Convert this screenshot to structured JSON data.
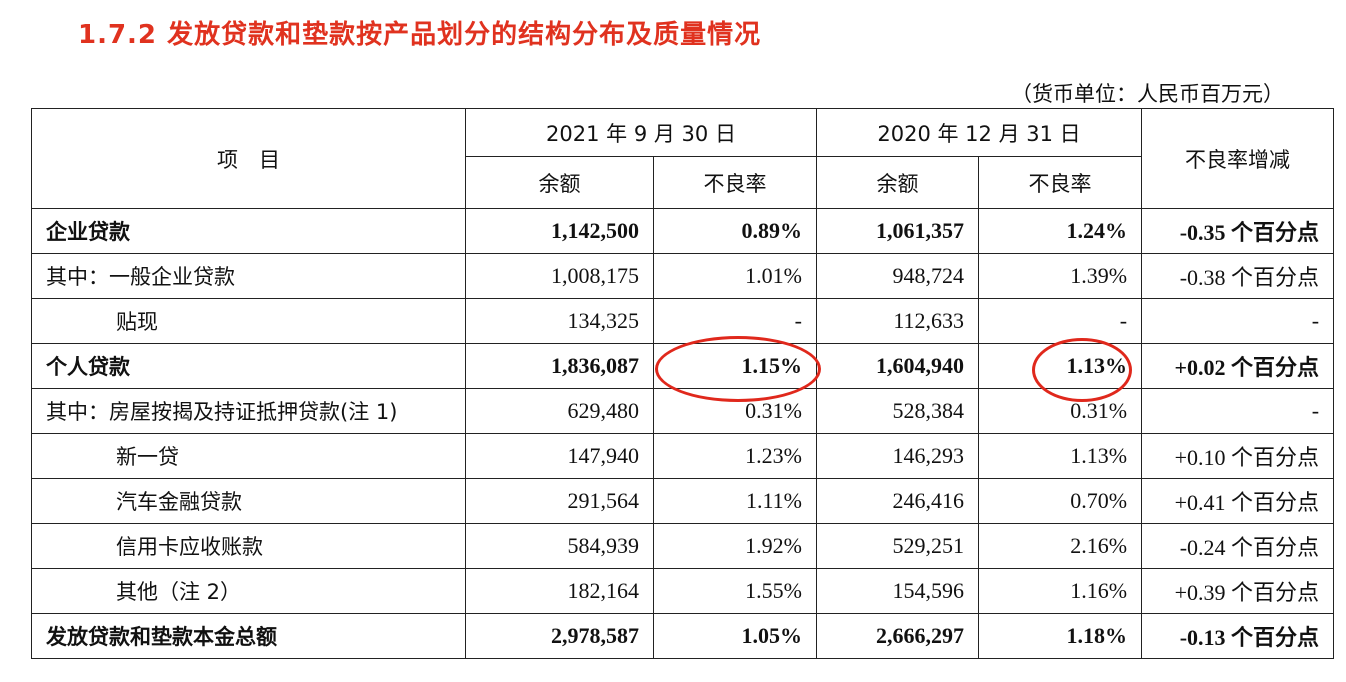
{
  "title": "1.7.2  发放贷款和垫款按产品划分的结构分布及质量情况",
  "unit": "（货币单位：人民币百万元）",
  "header": {
    "item": "项　目",
    "period1": "2021 年 9 月 30 日",
    "period2": "2020 年 12 月 31 日",
    "balance": "余额",
    "npl_ratio": "不良率",
    "change": "不良率增减"
  },
  "rows": [
    {
      "label": "企业贷款",
      "b1": "1,142,500",
      "r1": "0.89%",
      "b2": "1,061,357",
      "r2": "1.24%",
      "chg": "-0.35 个百分点"
    },
    {
      "label": "其中：一般企业贷款",
      "b1": "1,008,175",
      "r1": "1.01%",
      "b2": "948,724",
      "r2": "1.39%",
      "chg": "-0.38 个百分点"
    },
    {
      "label": "贴现",
      "b1": "134,325",
      "r1": "-",
      "b2": "112,633",
      "r2": "-",
      "chg": "-"
    },
    {
      "label": "个人贷款",
      "b1": "1,836,087",
      "r1": "1.15%",
      "b2": "1,604,940",
      "r2": "1.13%",
      "chg": "+0.02 个百分点"
    },
    {
      "label": "其中：房屋按揭及持证抵押贷款(注 1)",
      "b1": "629,480",
      "r1": "0.31%",
      "b2": "528,384",
      "r2": "0.31%",
      "chg": "-"
    },
    {
      "label": "新一贷",
      "b1": "147,940",
      "r1": "1.23%",
      "b2": "146,293",
      "r2": "1.13%",
      "chg": "+0.10 个百分点"
    },
    {
      "label": "汽车金融贷款",
      "b1": "291,564",
      "r1": "1.11%",
      "b2": "246,416",
      "r2": "0.70%",
      "chg": "+0.41 个百分点"
    },
    {
      "label": "信用卡应收账款",
      "b1": "584,939",
      "r1": "1.92%",
      "b2": "529,251",
      "r2": "2.16%",
      "chg": "-0.24 个百分点"
    },
    {
      "label": "其他（注 2）",
      "b1": "182,164",
      "r1": "1.55%",
      "b2": "154,596",
      "r2": "1.16%",
      "chg": "+0.39 个百分点"
    },
    {
      "label": "发放贷款和垫款本金总额",
      "b1": "2,978,587",
      "r1": "1.05%",
      "b2": "2,666,297",
      "r2": "1.18%",
      "chg": "-0.13 个百分点"
    }
  ],
  "colors": {
    "title": "#e0321f",
    "annotation": "#e0281c"
  }
}
